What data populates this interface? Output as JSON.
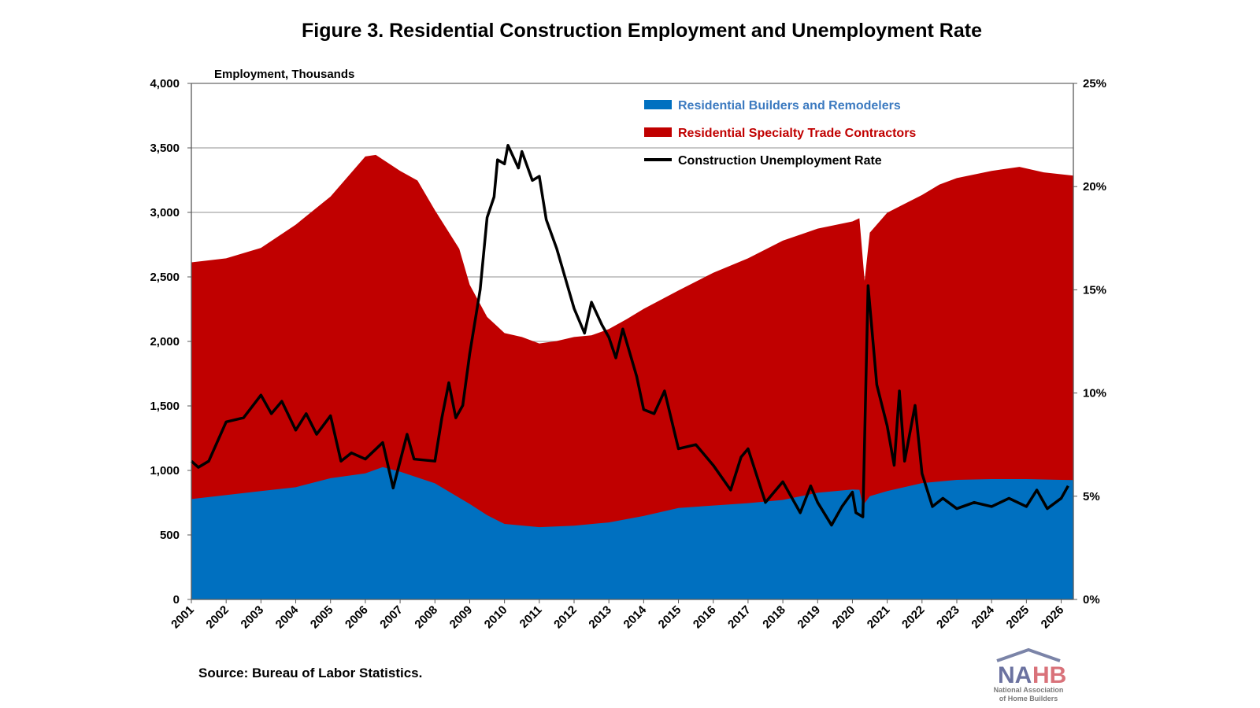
{
  "chart_data": {
    "type": "area",
    "title": "Figure 3. Residential Construction Employment and Unemployment Rate",
    "ylabel": "Employment, Thousands",
    "y2label": "",
    "ylim": [
      0,
      4000
    ],
    "y2lim": [
      0,
      25
    ],
    "xlim": [
      2001,
      2026.35
    ],
    "yticks": [
      "0",
      "500",
      "1,000",
      "1,500",
      "2,000",
      "2,500",
      "3,000",
      "3,500",
      "4,000"
    ],
    "ytick_values": [
      0,
      500,
      1000,
      1500,
      2000,
      2500,
      3000,
      3500,
      4000
    ],
    "y2ticks": [
      "0%",
      "5%",
      "10%",
      "15%",
      "20%",
      "25%"
    ],
    "y2tick_values": [
      0,
      5,
      10,
      15,
      20,
      25
    ],
    "xticks": [
      "2001",
      "2002",
      "2003",
      "2004",
      "2005",
      "2006",
      "2007",
      "2008",
      "2009",
      "2010",
      "2011",
      "2012",
      "2013",
      "2014",
      "2015",
      "2016",
      "2017",
      "2018",
      "2019",
      "2020",
      "2021",
      "2022",
      "2023",
      "2024",
      "2025",
      "2026"
    ],
    "grid": "horizontal",
    "legend_position": "top-center",
    "series": [
      {
        "name": "Residential Builders and Remodelers",
        "type": "area",
        "color": "#0070C0",
        "axis": "left",
        "x": [
          2001,
          2003,
          2004,
          2005,
          2006,
          2006.5,
          2007,
          2008,
          2009,
          2009.5,
          2010,
          2011,
          2012,
          2013,
          2014,
          2015,
          2016,
          2017,
          2018,
          2019,
          2020,
          2020.2,
          2020.3,
          2020.5,
          2021,
          2022,
          2023,
          2024,
          2025,
          2026,
          2026.35
        ],
        "values": [
          778,
          840,
          870,
          940,
          977,
          1026,
          990,
          900,
          740,
          653,
          585,
          560,
          572,
          597,
          647,
          709,
          728,
          746,
          771,
          827,
          852,
          850,
          728,
          800,
          840,
          902,
          927,
          933,
          933,
          927,
          925
        ]
      },
      {
        "name": "Residential Specialty Trade Contractors",
        "type": "stacked-area-total",
        "color": "#C00000",
        "axis": "left",
        "x": [
          2001,
          2002,
          2003,
          2004,
          2005,
          2006,
          2006.3,
          2007,
          2007.5,
          2008,
          2008.7,
          2009,
          2009.5,
          2010,
          2010.5,
          2011,
          2011.5,
          2012,
          2012.5,
          2013,
          2013.5,
          2014,
          2015,
          2016,
          2017,
          2018,
          2019,
          2020,
          2020.2,
          2020.35,
          2020.5,
          2021,
          2022,
          2022.5,
          2023,
          2024,
          2024.8,
          2025.5,
          2026.35
        ],
        "values": [
          2613,
          2644,
          2725,
          2905,
          3123,
          3434,
          3446,
          3322,
          3247,
          3017,
          2718,
          2439,
          2190,
          2065,
          2034,
          1984,
          2003,
          2034,
          2047,
          2096,
          2171,
          2252,
          2395,
          2532,
          2644,
          2781,
          2874,
          2930,
          2955,
          2470,
          2843,
          2998,
          3135,
          3216,
          3266,
          3322,
          3353,
          3310,
          3285
        ]
      },
      {
        "name": "Construction Unemployment Rate",
        "type": "line",
        "color": "#000000",
        "axis": "right",
        "x": [
          2001,
          2001.2,
          2001.5,
          2002,
          2002.5,
          2003,
          2003.3,
          2003.6,
          2004,
          2004.3,
          2004.6,
          2005,
          2005.3,
          2005.6,
          2006,
          2006.5,
          2006.8,
          2007,
          2007.2,
          2007.4,
          2008,
          2008.2,
          2008.4,
          2008.6,
          2008.8,
          2009,
          2009.3,
          2009.5,
          2009.7,
          2009.8,
          2010,
          2010.1,
          2010.4,
          2010.5,
          2010.8,
          2011,
          2011.2,
          2011.5,
          2012,
          2012.3,
          2012.5,
          2012.8,
          2013,
          2013.2,
          2013.4,
          2013.8,
          2014,
          2014.3,
          2014.6,
          2015,
          2015.5,
          2016,
          2016.5,
          2016.8,
          2017,
          2017.5,
          2018,
          2018.5,
          2018.8,
          2019,
          2019.4,
          2019.7,
          2020,
          2020.1,
          2020.3,
          2020.45,
          2020.7,
          2021,
          2021.2,
          2021.35,
          2021.5,
          2021.8,
          2022,
          2022.3,
          2022.6,
          2023,
          2023.5,
          2024,
          2024.5,
          2025,
          2025.3,
          2025.6,
          2026,
          2026.2
        ],
        "values": [
          6.7,
          6.4,
          6.7,
          8.6,
          8.8,
          9.9,
          9.0,
          9.6,
          8.2,
          9.0,
          8.0,
          8.9,
          6.7,
          7.1,
          6.8,
          7.6,
          5.4,
          6.7,
          8.0,
          6.8,
          6.7,
          8.8,
          10.5,
          8.8,
          9.4,
          11.9,
          15.0,
          18.5,
          19.5,
          21.3,
          21.1,
          22.0,
          20.9,
          21.7,
          20.3,
          20.5,
          18.4,
          17.0,
          14.1,
          12.9,
          14.4,
          13.3,
          12.7,
          11.7,
          13.1,
          10.8,
          9.2,
          9.0,
          10.1,
          7.3,
          7.5,
          6.5,
          5.3,
          6.9,
          7.3,
          4.7,
          5.7,
          4.2,
          5.5,
          4.7,
          3.6,
          4.5,
          5.2,
          4.2,
          4.0,
          15.2,
          10.4,
          8.4,
          6.5,
          10.1,
          6.7,
          9.4,
          6.1,
          4.5,
          4.9,
          4.4,
          4.7,
          4.5,
          4.9,
          4.5,
          5.3,
          4.4,
          4.9,
          5.5
        ]
      }
    ],
    "source": "Source: Bureau of Labor Statistics."
  },
  "logo": {
    "text": "NAHB",
    "subtitle_1": "National Association",
    "subtitle_2": "of Home Builders"
  }
}
